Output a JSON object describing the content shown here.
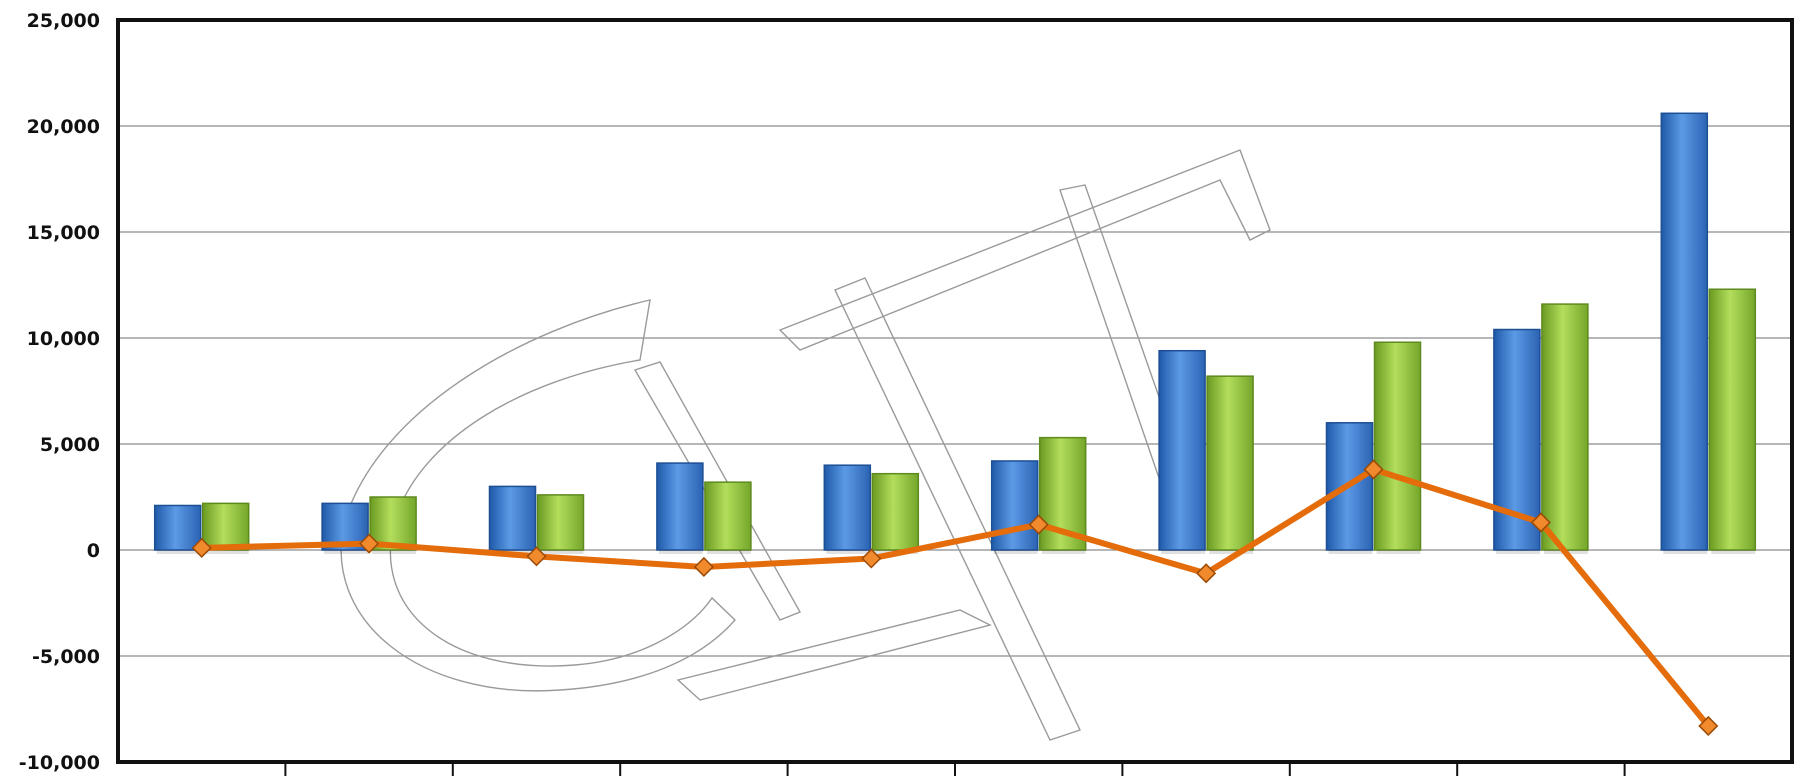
{
  "chart_data": {
    "type": "bar",
    "categories": [
      "",
      "",
      "",
      "",
      "",
      "",
      "",
      "",
      "",
      ""
    ],
    "series": [
      {
        "type": "bar",
        "color": "#3b7ad0",
        "values": [
          2100,
          2200,
          3000,
          4100,
          4000,
          4200,
          9400,
          6000,
          10400,
          20600
        ]
      },
      {
        "type": "bar",
        "color": "#8cbf3a",
        "values": [
          2200,
          2500,
          2600,
          3200,
          3600,
          5300,
          8200,
          9800,
          11600,
          12300
        ]
      },
      {
        "type": "line",
        "color": "#e46c0a",
        "values": [
          100,
          300,
          -300,
          -800,
          -400,
          1200,
          -1100,
          3800,
          1300,
          -8300
        ]
      }
    ],
    "yticks": [
      "25,000",
      "20,000",
      "15,000",
      "10,000",
      "5,000",
      "0",
      "-5,000",
      "-10,000"
    ],
    "ylim": [
      -10000,
      25000
    ],
    "grid": true,
    "legend": "none",
    "title": "",
    "xlabel": "",
    "ylabel": ""
  }
}
